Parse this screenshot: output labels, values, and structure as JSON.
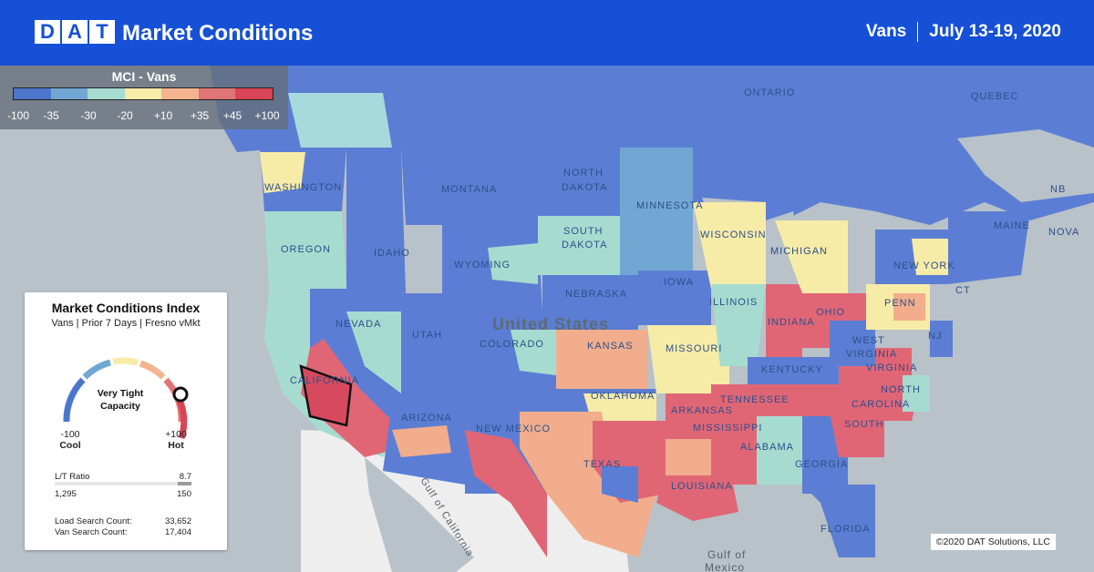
{
  "header": {
    "logo_letters": [
      "D",
      "A",
      "T"
    ],
    "title": "Market Conditions",
    "equipment": "Vans",
    "date_range": "July 13-19, 2020"
  },
  "scale": {
    "title": "MCI - Vans",
    "ticks": [
      "-100",
      "-35",
      "-30",
      "-20",
      "+10",
      "+35",
      "+45",
      "+100"
    ],
    "colors": [
      "#4c76cc",
      "#4c76cc",
      "#72a7d4",
      "#a7dcd0",
      "#f8eba8",
      "#f3b48f",
      "#e07575",
      "#d94456"
    ]
  },
  "card": {
    "title": "Market Conditions Index",
    "subtitle": "Vans | Prior 7 Days | Fresno vMkt",
    "gauge_text_line1": "Very Tight",
    "gauge_text_line2": "Capacity",
    "gauge_value_fraction": 0.97,
    "min_value": "-100",
    "min_label": "Cool",
    "max_value": "+100",
    "max_label": "Hot",
    "lt_label": "L/T Ratio",
    "lt_value": "8.7",
    "loads": "1,295",
    "trucks": "150",
    "load_search_label": "Load Search Count:",
    "load_search_value": "33,652",
    "van_search_label": "Van Search Count:",
    "van_search_value": "17,404"
  },
  "map": {
    "labels": {
      "ontario": "ONTARIO",
      "quebec": "QUEBEC",
      "nb": "NB",
      "nova": "NOVA",
      "washington": "WASHINGTON",
      "oregon": "OREGON",
      "idaho": "IDAHO",
      "montana": "MONTANA",
      "wyoming": "WYOMING",
      "nevada": "NEVADA",
      "utah": "UTAH",
      "colorado": "COLORADO",
      "california": "CALIFORNIA",
      "arizona": "ARIZONA",
      "new_mexico": "NEW MEXICO",
      "north_dakota_1": "NORTH",
      "north_dakota_2": "DAKOTA",
      "south_dakota_1": "SOUTH",
      "south_dakota_2": "DAKOTA",
      "nebraska": "NEBRASKA",
      "kansas": "KANSAS",
      "oklahoma": "OKLAHOMA",
      "texas": "TEXAS",
      "minnesota": "MINNESOTA",
      "iowa": "IOWA",
      "missouri": "MISSOURI",
      "wisconsin": "WISCONSIN",
      "illinois": "ILLINOIS",
      "michigan": "MICHIGAN",
      "indiana": "INDIANA",
      "ohio": "OHIO",
      "kentucky": "KENTUCKY",
      "tennessee": "TENNESSEE",
      "arkansas": "ARKANSAS",
      "mississippi": "MISSISSIPPI",
      "alabama": "ALABAMA",
      "georgia": "GEORGIA",
      "louisiana": "LOUISIANA",
      "florida": "FLORIDA",
      "south_carolina": "SOUTH",
      "north_carolina": "NORTH",
      "north_carolina_2": "CAROLINA",
      "virginia": "VIRGINIA",
      "west_virginia_1": "WEST",
      "west_virginia_2": "VIRGINIA",
      "pennsylvania": "PENN",
      "new_york": "NEW YORK",
      "maine": "MAINE",
      "nj": "NJ",
      "ct": "CT",
      "united_states": "United States",
      "gulf_california": "Gulf of California",
      "gulf_mexico_1": "Gulf of",
      "gulf_mexico_2": "Mexico"
    },
    "copyright": "©2020 DAT Solutions, LLC"
  }
}
